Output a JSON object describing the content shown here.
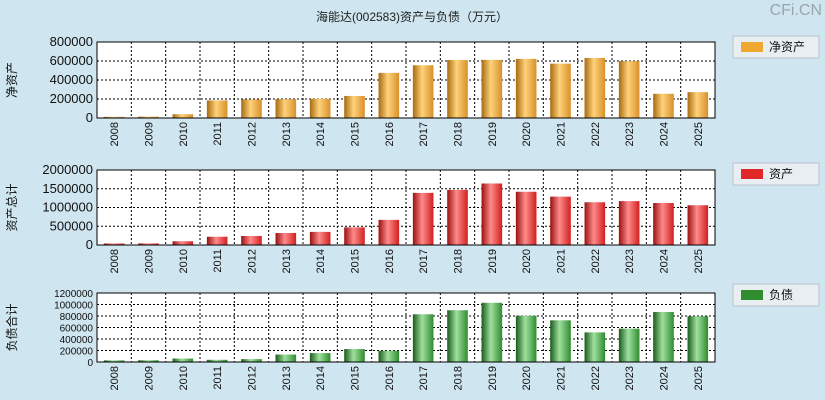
{
  "title": "海能达(002583)资产与负债（万元）",
  "watermark": "CFi.CN",
  "chart_data": [
    {
      "type": "bar",
      "ylabel": "净资产",
      "legend": "净资产",
      "color": "#f0a830",
      "categories": [
        "2008",
        "2009",
        "2010",
        "2011",
        "2012",
        "2013",
        "2014",
        "2015",
        "2016",
        "2017",
        "2018",
        "2019",
        "2020",
        "2021",
        "2022",
        "2023",
        "2024",
        "2025"
      ],
      "values": [
        12000,
        14000,
        40000,
        185000,
        195000,
        198000,
        202000,
        232000,
        475000,
        555000,
        610000,
        612000,
        622000,
        572000,
        632000,
        598000,
        255000,
        272000
      ],
      "ylim": [
        0,
        800000
      ],
      "yticks": [
        "800000",
        "600000",
        "400000",
        "200000",
        "0"
      ]
    },
    {
      "type": "bar",
      "ylabel": "资产总计",
      "legend": "资产",
      "color": "#e02828",
      "categories": [
        "2008",
        "2009",
        "2010",
        "2011",
        "2012",
        "2013",
        "2014",
        "2015",
        "2016",
        "2017",
        "2018",
        "2019",
        "2020",
        "2021",
        "2022",
        "2023",
        "2024",
        "2025"
      ],
      "values": [
        40000,
        42000,
        100000,
        220000,
        240000,
        320000,
        350000,
        470000,
        670000,
        1390000,
        1470000,
        1640000,
        1420000,
        1290000,
        1140000,
        1170000,
        1120000,
        1060000
      ],
      "ylim": [
        0,
        2000000
      ],
      "yticks": [
        "2000000",
        "1500000",
        "1000000",
        "500000",
        "0"
      ]
    },
    {
      "type": "bar",
      "ylabel": "负债合计",
      "legend": "负债",
      "color": "#2f8c2f",
      "categories": [
        "2008",
        "2009",
        "2010",
        "2011",
        "2012",
        "2013",
        "2014",
        "2015",
        "2016",
        "2017",
        "2018",
        "2019",
        "2020",
        "2021",
        "2022",
        "2023",
        "2024",
        "2025"
      ],
      "values": [
        28000,
        30000,
        60000,
        38000,
        50000,
        130000,
        155000,
        225000,
        195000,
        830000,
        900000,
        1030000,
        805000,
        725000,
        515000,
        580000,
        870000,
        795000
      ],
      "ylim": [
        0,
        1200000
      ],
      "yticks": [
        "1200000",
        "1000000",
        "800000",
        "600000",
        "400000",
        "200000",
        "0"
      ]
    }
  ]
}
